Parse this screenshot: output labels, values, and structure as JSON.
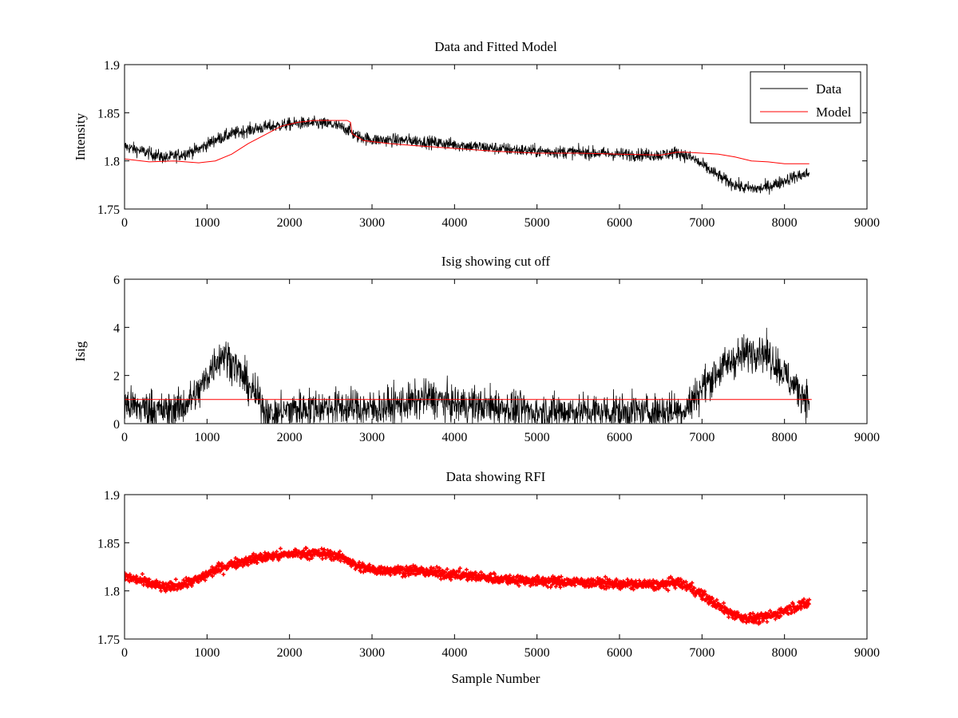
{
  "figure": {
    "background": "#ffffff",
    "colors": {
      "data": "#000000",
      "model": "#ff0000",
      "rfi": "#ff0000",
      "cutoff": "#ff0000"
    }
  },
  "chart_data": [
    {
      "id": "data-and-fitted-model",
      "type": "line",
      "title": "Data and Fitted Model",
      "xlabel": "",
      "ylabel": "Intensity",
      "xlim": [
        0,
        9000
      ],
      "ylim": [
        1.75,
        1.9
      ],
      "xticks": [
        0,
        1000,
        2000,
        3000,
        4000,
        5000,
        6000,
        7000,
        8000,
        9000
      ],
      "yticks": [
        1.75,
        1.8,
        1.85,
        1.9
      ],
      "ytick_labels": [
        "1.75",
        "1.8",
        "1.85",
        "1.9"
      ],
      "legend": {
        "position": "top-right",
        "entries": [
          "Data",
          "Model"
        ]
      },
      "series": [
        {
          "name": "Data",
          "color": "#000000",
          "style": "noisy-line",
          "noise": 0.006,
          "x": [
            0,
            300,
            500,
            700,
            900,
            1100,
            1300,
            1500,
            1700,
            1900,
            2100,
            2300,
            2500,
            2700,
            2800,
            3000,
            3500,
            4000,
            4500,
            5000,
            5500,
            6000,
            6500,
            6700,
            6900,
            7100,
            7300,
            7500,
            7700,
            7900,
            8100,
            8300
          ],
          "y": [
            1.815,
            1.808,
            1.803,
            1.807,
            1.812,
            1.822,
            1.828,
            1.832,
            1.835,
            1.837,
            1.839,
            1.839,
            1.838,
            1.833,
            1.826,
            1.822,
            1.821,
            1.817,
            1.813,
            1.81,
            1.809,
            1.807,
            1.806,
            1.809,
            1.802,
            1.79,
            1.779,
            1.772,
            1.771,
            1.776,
            1.783,
            1.787
          ]
        },
        {
          "name": "Model",
          "color": "#ff0000",
          "style": "line",
          "x": [
            0,
            300,
            600,
            900,
            1100,
            1300,
            1500,
            1700,
            1900,
            2100,
            2300,
            2500,
            2700,
            2740,
            2760,
            2900,
            3200,
            3500,
            4000,
            4500,
            5000,
            5500,
            6000,
            6500,
            6700,
            6800,
            7000,
            7200,
            7400,
            7600,
            7800,
            8000,
            8300
          ],
          "y": [
            1.802,
            1.799,
            1.8,
            1.798,
            1.8,
            1.807,
            1.818,
            1.827,
            1.836,
            1.84,
            1.842,
            1.842,
            1.842,
            1.84,
            1.828,
            1.821,
            1.818,
            1.816,
            1.813,
            1.81,
            1.808,
            1.808,
            1.807,
            1.806,
            1.809,
            1.809,
            1.808,
            1.807,
            1.804,
            1.8,
            1.799,
            1.797,
            1.797
          ]
        }
      ]
    },
    {
      "id": "isig-showing-cut-off",
      "type": "line",
      "title": "Isig showing cut off",
      "xlabel": "",
      "ylabel": "Isig",
      "xlim": [
        0,
        9000
      ],
      "ylim": [
        0,
        6
      ],
      "xticks": [
        0,
        1000,
        2000,
        3000,
        4000,
        5000,
        6000,
        7000,
        8000,
        9000
      ],
      "yticks": [
        0,
        2,
        4,
        6
      ],
      "ytick_labels": [
        "0",
        "2",
        "4",
        "6"
      ],
      "series": [
        {
          "color": "#000000",
          "style": "noisy-line",
          "noise": 0.7,
          "clip_min": 0,
          "x": [
            0,
            300,
            500,
            700,
            900,
            1100,
            1200,
            1300,
            1500,
            1700,
            1800,
            2000,
            2500,
            3000,
            3500,
            3700,
            4000,
            4500,
            5000,
            5500,
            6000,
            6500,
            6800,
            7000,
            7200,
            7400,
            7600,
            7700,
            7900,
            8100,
            8300
          ],
          "y": [
            0.8,
            0.6,
            0.5,
            0.7,
            1.3,
            2.6,
            2.9,
            2.6,
            1.6,
            0.6,
            0.3,
            0.6,
            0.7,
            0.6,
            0.9,
            1.1,
            0.8,
            0.7,
            0.5,
            0.5,
            0.5,
            0.5,
            0.6,
            1.5,
            2.2,
            2.7,
            3.0,
            3.1,
            2.5,
            1.6,
            1.0
          ]
        },
        {
          "color": "#ff0000",
          "style": "line",
          "x": [
            0,
            8330
          ],
          "y": [
            1,
            1
          ]
        }
      ]
    },
    {
      "id": "data-showing-rfi",
      "type": "scatter",
      "title": "Data showing RFI",
      "xlabel": "Sample Number",
      "ylabel": "",
      "xlim": [
        0,
        9000
      ],
      "ylim": [
        1.75,
        1.9
      ],
      "xticks": [
        0,
        1000,
        2000,
        3000,
        4000,
        5000,
        6000,
        7000,
        8000,
        9000
      ],
      "yticks": [
        1.75,
        1.8,
        1.85,
        1.9
      ],
      "ytick_labels": [
        "1.75",
        "1.8",
        "1.85",
        "1.9"
      ],
      "series": [
        {
          "color": "#ff0000",
          "style": "noisy-markers",
          "noise": 0.0045,
          "x": [
            0,
            300,
            500,
            700,
            900,
            1100,
            1300,
            1500,
            1700,
            1900,
            2100,
            2300,
            2500,
            2700,
            2800,
            3000,
            3500,
            4000,
            4500,
            5000,
            5500,
            6000,
            6500,
            6700,
            6900,
            7100,
            7300,
            7500,
            7700,
            7900,
            8100,
            8300
          ],
          "y": [
            1.815,
            1.808,
            1.803,
            1.807,
            1.812,
            1.822,
            1.828,
            1.832,
            1.835,
            1.837,
            1.839,
            1.839,
            1.838,
            1.833,
            1.826,
            1.822,
            1.821,
            1.817,
            1.813,
            1.81,
            1.809,
            1.807,
            1.806,
            1.809,
            1.802,
            1.79,
            1.779,
            1.772,
            1.771,
            1.776,
            1.783,
            1.787
          ]
        }
      ]
    }
  ]
}
